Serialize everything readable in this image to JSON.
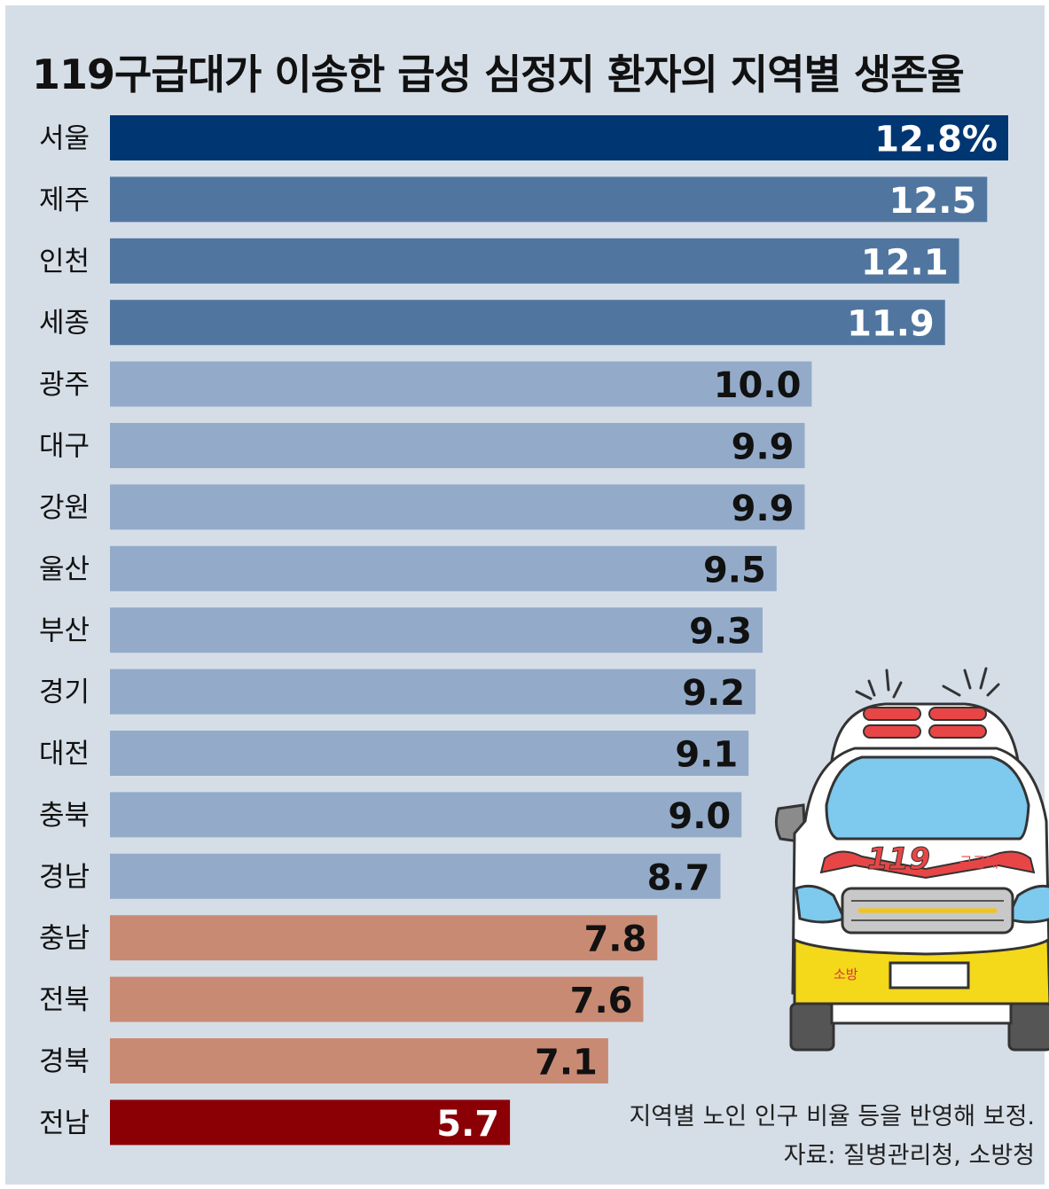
{
  "title": "119구급대가 이송한 급성 심정지 환자의 지역별 생존율",
  "note": "지역별 노인 인구 비율 등을 반영해 보정.",
  "source": "자료: 질병관리청, 소방청",
  "ambulance": {
    "badge": "119",
    "label": "구급대",
    "side_label": "소방"
  },
  "colors": {
    "top": "#003773",
    "high": "#5076a0",
    "mid": "#93abc9",
    "low": "#c98a74",
    "bottom": "#8b0005",
    "background": "#d5dee7"
  },
  "chart_data": {
    "type": "bar",
    "orientation": "horizontal",
    "unit": "%",
    "xlim": [
      0,
      13
    ],
    "grid": false,
    "categories": [
      "서울",
      "제주",
      "인천",
      "세종",
      "광주",
      "대구",
      "강원",
      "울산",
      "부산",
      "경기",
      "대전",
      "충북",
      "경남",
      "충남",
      "전북",
      "경북",
      "전남"
    ],
    "values": [
      12.8,
      12.5,
      12.1,
      11.9,
      10.0,
      9.9,
      9.9,
      9.5,
      9.3,
      9.2,
      9.1,
      9.0,
      8.7,
      7.8,
      7.6,
      7.1,
      5.7
    ],
    "value_labels": [
      "12.8%",
      "12.5",
      "12.1",
      "11.9",
      "10.0",
      "9.9",
      "9.9",
      "9.5",
      "9.3",
      "9.2",
      "9.1",
      "9.0",
      "8.7",
      "7.8",
      "7.6",
      "7.1",
      "5.7"
    ],
    "bar_groups": [
      "top",
      "high",
      "high",
      "high",
      "mid",
      "mid",
      "mid",
      "mid",
      "mid",
      "mid",
      "mid",
      "mid",
      "mid",
      "low",
      "low",
      "low",
      "bottom"
    ]
  }
}
